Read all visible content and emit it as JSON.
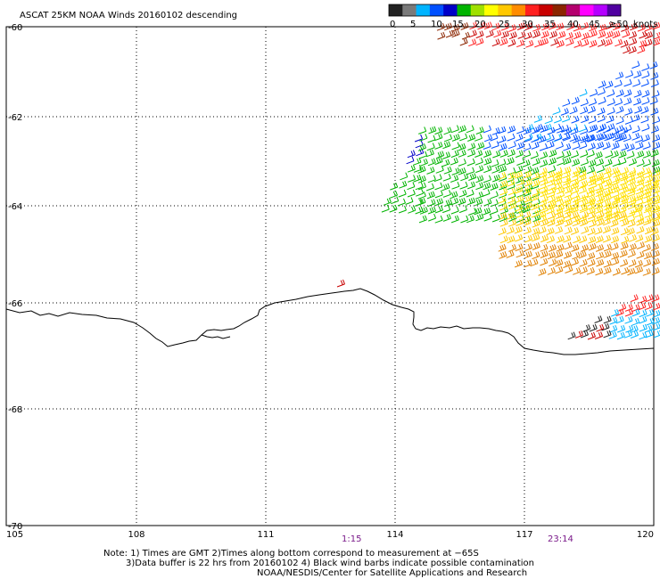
{
  "title": "ASCAT 25KM NOAA Winds 20160102 descending",
  "legend": {
    "labels": [
      "0",
      "5",
      "10",
      "15",
      "20",
      "25",
      "30",
      "35",
      "40",
      "45",
      "≥50"
    ],
    "units": "knots",
    "colors": [
      "#222222",
      "#7a7a7a",
      "#00b4ff",
      "#0050ff",
      "#0000c8",
      "#00b400",
      "#9fe000",
      "#ffff00",
      "#ffc800",
      "#ff8c00",
      "#ff2020",
      "#c80000",
      "#8b2500",
      "#b4006e",
      "#ff00ff",
      "#b400ff",
      "#5000a0"
    ]
  },
  "axes": {
    "x_ticks": [
      "105",
      "108",
      "111",
      "114",
      "117",
      "120"
    ],
    "y_ticks": [
      "-60",
      "-62",
      "-64",
      "-66",
      "-68",
      "-70"
    ]
  },
  "times": [
    "1:15",
    "23:14"
  ],
  "notes": [
    "Note: 1) Times are GMT 2)Times along bottom correspond to measurement at −65S",
    "3)Data buffer is 22 hrs from 20160102 4) Black wind barbs indicate possible contamination",
    "NOAA/NESDIS/Center for Satellite Applications and Research"
  ]
}
